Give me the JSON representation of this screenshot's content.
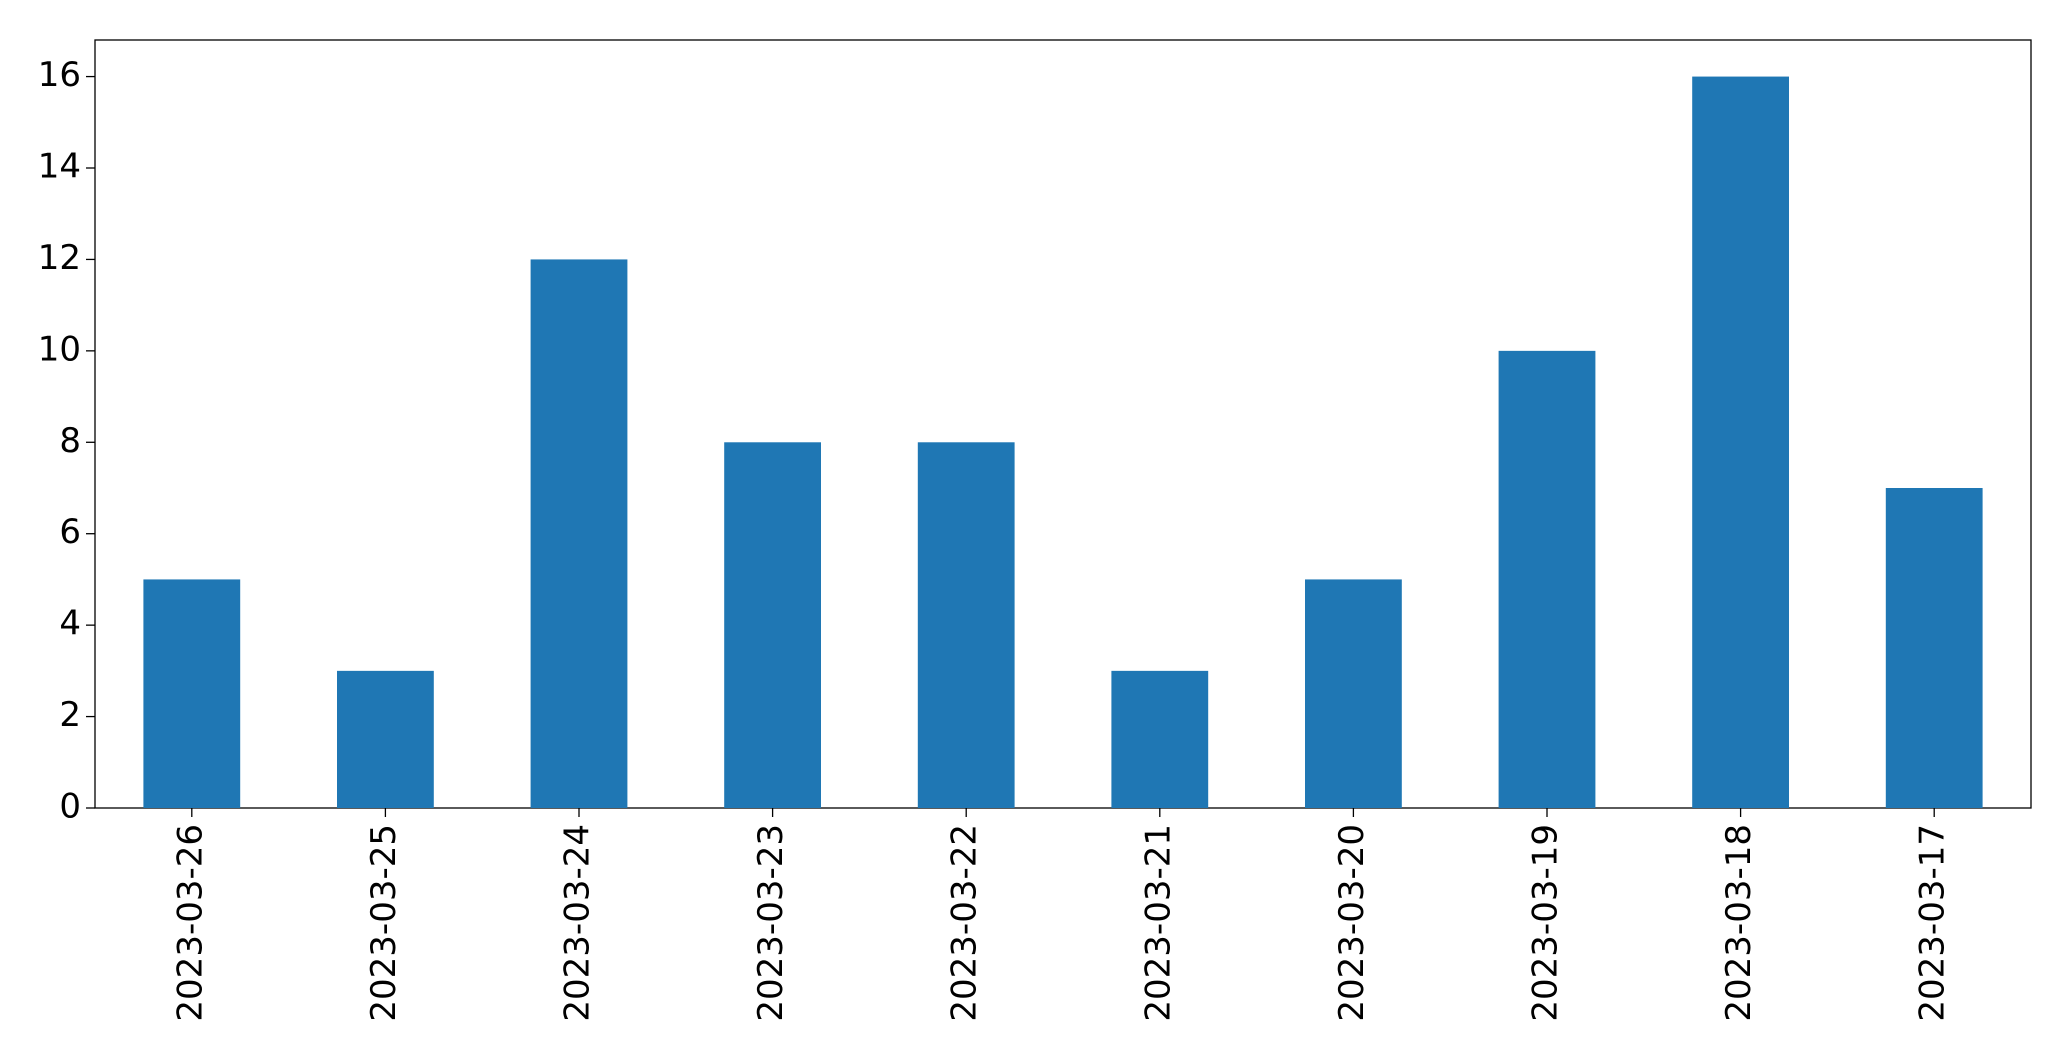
{
  "chart_data": {
    "type": "bar",
    "categories": [
      "2023-03-26",
      "2023-03-25",
      "2023-03-24",
      "2023-03-23",
      "2023-03-22",
      "2023-03-21",
      "2023-03-20",
      "2023-03-19",
      "2023-03-18",
      "2023-03-17"
    ],
    "values": [
      5,
      3,
      12,
      8,
      8,
      3,
      5,
      10,
      16,
      7
    ],
    "color": "#1f77b4",
    "ylim": [
      0,
      16.8
    ],
    "yticks": [
      0,
      2,
      4,
      6,
      8,
      10,
      12,
      14,
      16
    ],
    "grid": false
  }
}
